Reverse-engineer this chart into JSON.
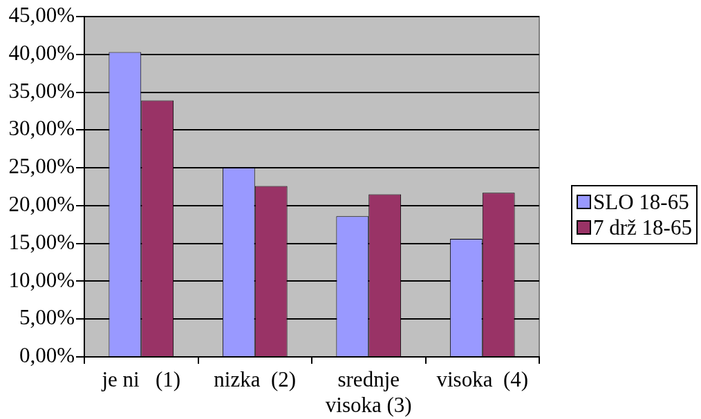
{
  "chart_data": {
    "type": "bar",
    "categories": [
      "je ni   (1)",
      "nizka  (2)",
      "srednje visoka (3)",
      "visoka  (4)"
    ],
    "series": [
      {
        "name": "SLO 18-65",
        "color": "#9999ff",
        "values": [
          40.3,
          25.0,
          18.6,
          15.6
        ]
      },
      {
        "name": "7 drž 18-65",
        "color": "#993366",
        "values": [
          33.9,
          22.6,
          21.5,
          21.7
        ]
      }
    ],
    "ylim": [
      0,
      45
    ],
    "yticks": [
      {
        "value": 0,
        "label": "0,00%"
      },
      {
        "value": 5,
        "label": "5,00%"
      },
      {
        "value": 10,
        "label": "10,00%"
      },
      {
        "value": 15,
        "label": "15,00%"
      },
      {
        "value": 20,
        "label": "20,00%"
      },
      {
        "value": 25,
        "label": "25,00%"
      },
      {
        "value": 30,
        "label": "30,00%"
      },
      {
        "value": 35,
        "label": "35,00%"
      },
      {
        "value": 40,
        "label": "40,00%"
      },
      {
        "value": 45,
        "label": "45,00%"
      }
    ],
    "grid": "y",
    "legend": "right"
  }
}
